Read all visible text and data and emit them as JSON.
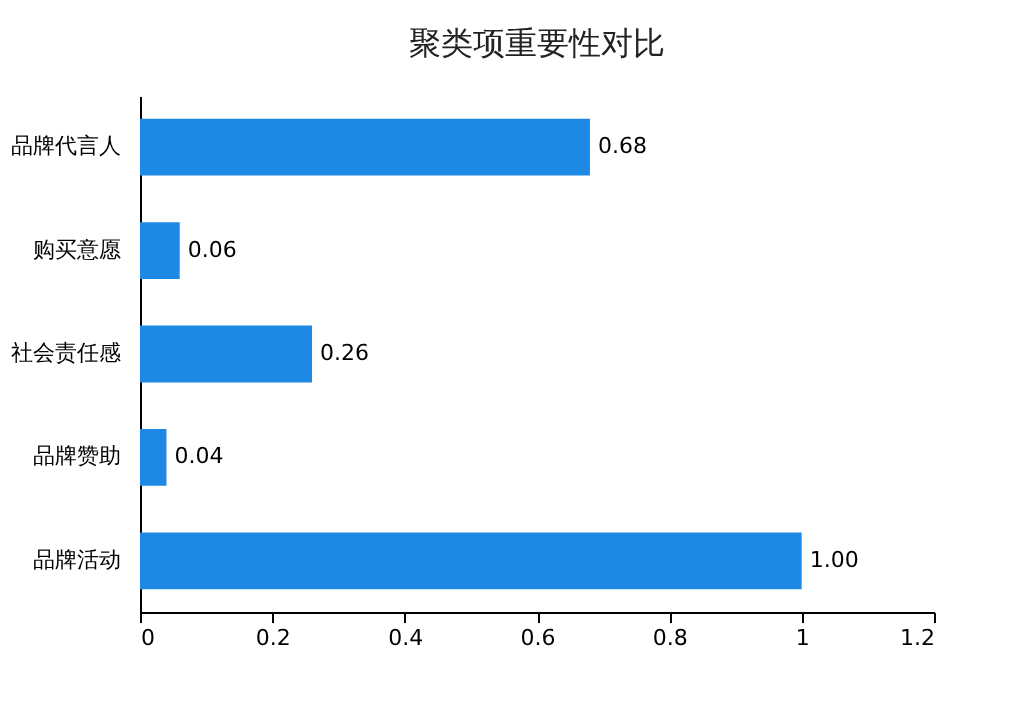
{
  "chart_data": {
    "type": "bar",
    "orientation": "horizontal",
    "title": "聚类项重要性对比",
    "categories": [
      "品牌代言人",
      "购买意愿",
      "社会责任感",
      "品牌赞助",
      "品牌活动"
    ],
    "values": [
      0.68,
      0.06,
      0.26,
      0.04,
      1.0
    ],
    "value_labels": [
      "0.68",
      "0.06",
      "0.26",
      "0.04",
      "1.00"
    ],
    "color": "#1e88e5",
    "xlim": [
      0,
      1.2
    ],
    "xticks": [
      0,
      0.2,
      0.4,
      0.6,
      0.8,
      1,
      1.2
    ],
    "grid": false
  }
}
